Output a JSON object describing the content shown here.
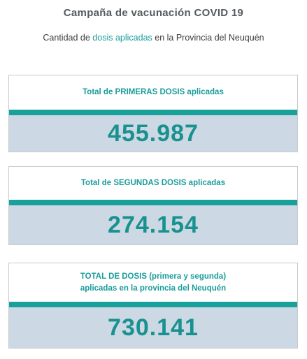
{
  "header": {
    "title": "Campaña de vacunación COVID 19",
    "subtitle_prefix": "Cantidad de ",
    "subtitle_highlight": "dosis aplicadas",
    "subtitle_suffix": " en la Provincia del Neuquén"
  },
  "cards": [
    {
      "label_line1": "Total de PRIMERAS DOSIS aplicadas",
      "value": "455.987"
    },
    {
      "label_line1": "Total de SEGUNDAS DOSIS aplicadas",
      "value": "274.154"
    },
    {
      "label_line1": "TOTAL DE DOSIS (primera y segunda)",
      "label_line2": "aplicadas en la provincia del Neuquén",
      "value": "730.141"
    }
  ],
  "colors": {
    "accent": "#18a19b",
    "value_text": "#18918f",
    "value_bg": "#ccd8e4"
  }
}
